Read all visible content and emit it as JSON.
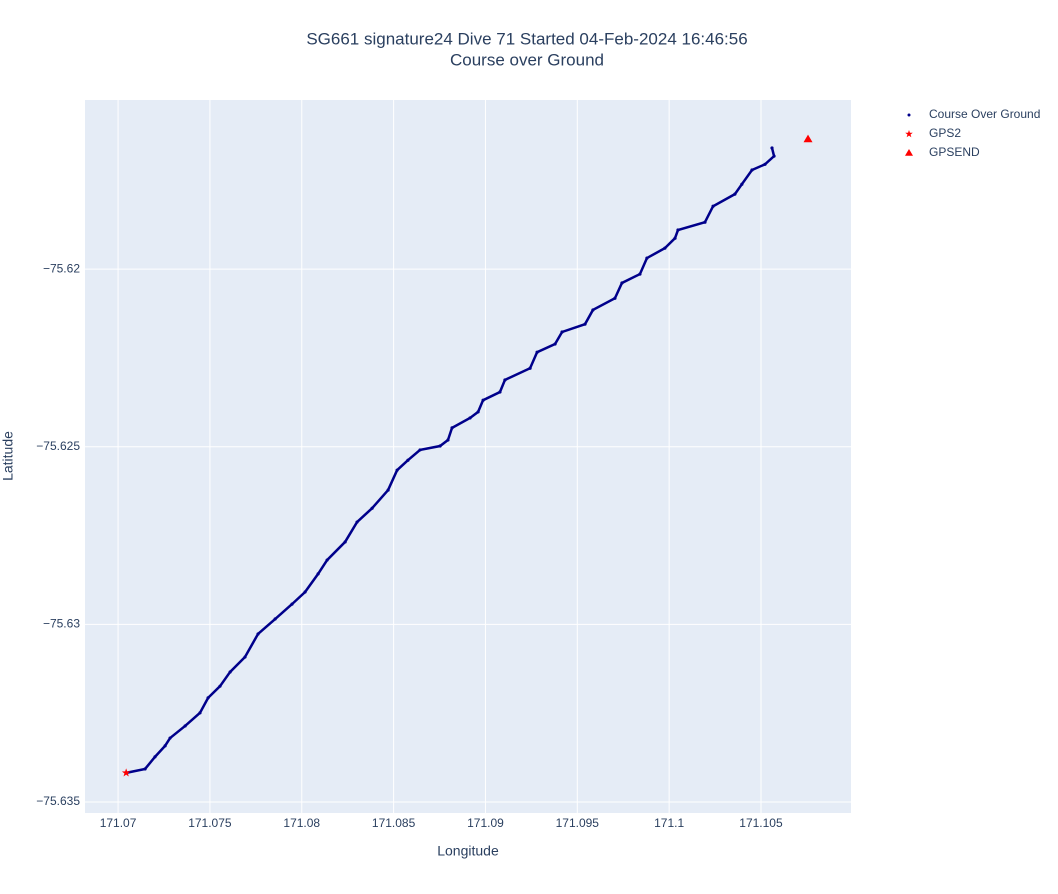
{
  "chart_data": {
    "type": "scatter",
    "title": "SG661 signature24 Dive 71 Started 04-Feb-2024 16:46:56",
    "subtitle": "Course over Ground",
    "x_label": "Longitude",
    "y_label": "Latitude",
    "xlim": [
      171.0682,
      171.1099
    ],
    "ylim": [
      -75.63531,
      -75.61524
    ],
    "xticks": [
      171.07,
      171.075,
      171.08,
      171.085,
      171.09,
      171.095,
      171.1,
      171.105
    ],
    "yticks": [
      {
        "value": -75.62,
        "label": "−75.62"
      },
      {
        "value": -75.625,
        "label": "−75.625"
      },
      {
        "value": -75.63,
        "label": "−75.63"
      },
      {
        "value": -75.635,
        "label": "−75.635"
      }
    ],
    "grid": true,
    "series": [
      {
        "name": "Course Over Ground",
        "color": "#00008b",
        "marker": "circle",
        "x": [
          171.07044,
          171.07147,
          171.07201,
          171.07256,
          171.07283,
          171.07365,
          171.07446,
          171.0749,
          171.07555,
          171.0761,
          171.07691,
          171.07762,
          171.07855,
          171.07947,
          171.08018,
          171.08089,
          171.08138,
          171.08236,
          171.08301,
          171.08383,
          171.0847,
          171.08519,
          171.08578,
          171.08644,
          171.08753,
          171.08796,
          171.08818,
          171.08916,
          171.0896,
          171.08987,
          171.09079,
          171.09106,
          171.09243,
          171.09281,
          171.09379,
          171.09417,
          171.09542,
          171.09585,
          171.09705,
          171.09743,
          171.09841,
          171.09879,
          171.09977,
          171.10032,
          171.10048,
          171.10195,
          171.10239,
          171.10358,
          171.10396,
          171.10451,
          171.10522,
          171.10571,
          171.1056
        ],
        "y": [
          -75.63418,
          -75.63407,
          -75.63373,
          -75.63342,
          -75.6332,
          -75.63286,
          -75.63249,
          -75.63207,
          -75.63174,
          -75.63134,
          -75.63092,
          -75.63027,
          -75.62985,
          -75.62943,
          -75.62909,
          -75.62858,
          -75.62819,
          -75.62768,
          -75.62712,
          -75.62673,
          -75.62622,
          -75.62566,
          -75.62538,
          -75.62509,
          -75.62498,
          -75.62481,
          -75.62447,
          -75.62419,
          -75.62402,
          -75.62369,
          -75.62346,
          -75.62312,
          -75.62279,
          -75.62234,
          -75.62211,
          -75.62177,
          -75.62155,
          -75.62115,
          -75.62082,
          -75.62039,
          -75.62014,
          -75.61969,
          -75.61941,
          -75.61913,
          -75.6189,
          -75.61868,
          -75.61823,
          -75.61789,
          -75.61761,
          -75.61721,
          -75.61705,
          -75.61682,
          -75.61659
        ]
      },
      {
        "name": "GPS2",
        "color": "#ff0000",
        "marker": "star",
        "x": [
          171.07044
        ],
        "y": [
          -75.63418
        ]
      },
      {
        "name": "GPSEND",
        "color": "#ff0000",
        "marker": "triangle",
        "x": [
          171.10756
        ],
        "y": [
          -75.61634
        ]
      }
    ]
  }
}
